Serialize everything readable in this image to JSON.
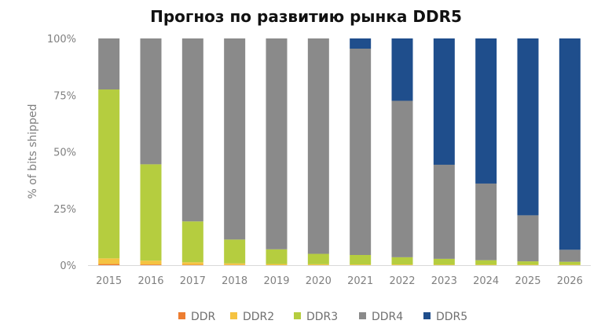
{
  "chart_data": {
    "type": "bar",
    "stacked": true,
    "title": "Прогноз по развитию рынка DDR5",
    "xlabel": "",
    "ylabel": "% of bits shipped",
    "ylim": [
      0,
      100
    ],
    "y_ticks": [
      "0%",
      "25%",
      "50%",
      "75%",
      "100%"
    ],
    "y_tick_values": [
      0,
      25,
      50,
      75,
      100
    ],
    "categories": [
      "2015",
      "2016",
      "2017",
      "2018",
      "2019",
      "2020",
      "2021",
      "2022",
      "2023",
      "2024",
      "2025",
      "2026"
    ],
    "series": [
      {
        "name": "DDR",
        "color": "#ed7d31",
        "values": [
          0.5,
          0.3,
          0.2,
          0.1,
          0,
          0,
          0,
          0,
          0,
          0,
          0,
          0
        ]
      },
      {
        "name": "DDR2",
        "color": "#f5c342",
        "values": [
          2.5,
          1.7,
          1.1,
          0.7,
          0.5,
          0.4,
          0.3,
          0.3,
          0.2,
          0.2,
          0.2,
          0.2
        ]
      },
      {
        "name": "DDR3",
        "color": "#b5cd3f",
        "values": [
          74.5,
          42.5,
          18,
          10.5,
          6.5,
          4.6,
          4.2,
          3.2,
          2.6,
          2.0,
          1.5,
          1.3
        ]
      },
      {
        "name": "DDR4",
        "color": "#8a8a8a",
        "values": [
          22.5,
          55.5,
          80.7,
          88.7,
          93,
          95,
          91,
          69,
          41.5,
          33.8,
          20.3,
          5.3
        ]
      },
      {
        "name": "DDR5",
        "color": "#1f4e8c",
        "values": [
          0,
          0,
          0,
          0,
          0,
          0,
          4.5,
          27.5,
          55.7,
          64,
          78,
          93.2
        ]
      }
    ],
    "grid": false,
    "legend_position": "bottom"
  }
}
